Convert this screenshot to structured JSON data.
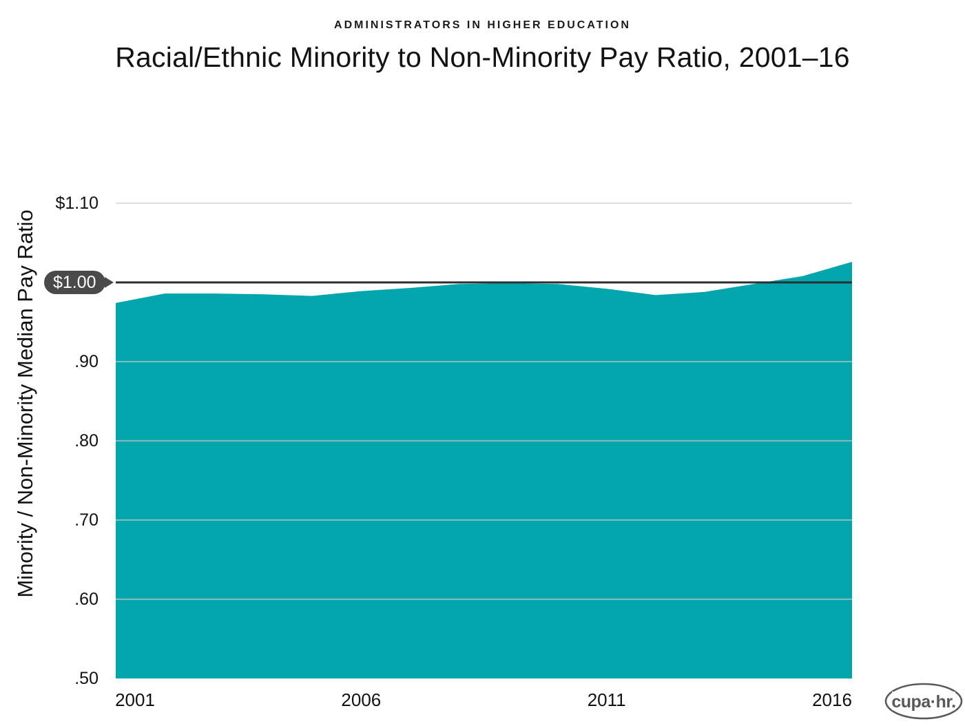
{
  "header": {
    "kicker": "ADMINISTRATORS IN HIGHER EDUCATION",
    "title": "Racial/Ethnic Minority to Non-Minority Pay Ratio, 2001–16"
  },
  "chart_data": {
    "type": "area",
    "title": "Racial/Ethnic Minority to Non-Minority Pay Ratio, 2001–16",
    "subtitle": "ADMINISTRATORS IN HIGHER EDUCATION",
    "xlabel": "",
    "ylabel": "Minority / Non-Minority Median Pay Ratio",
    "x": [
      2001,
      2002,
      2003,
      2004,
      2005,
      2006,
      2007,
      2008,
      2009,
      2010,
      2011,
      2012,
      2013,
      2014,
      2015,
      2016
    ],
    "values": [
      0.974,
      0.986,
      0.986,
      0.985,
      0.983,
      0.989,
      0.993,
      0.998,
      0.999,
      0.998,
      0.992,
      0.984,
      0.988,
      0.998,
      1.008,
      1.026
    ],
    "series_name": "Minority to non-minority median pay ratio",
    "ylim": [
      0.5,
      1.1
    ],
    "xlim": [
      2001,
      2016
    ],
    "grid": true,
    "legend": false,
    "y_ticks": [
      {
        "label": "$1.10",
        "value": 1.1,
        "gridline": true
      },
      {
        "label": ".90",
        "value": 0.9,
        "gridline": true
      },
      {
        "label": ".80",
        "value": 0.8,
        "gridline": true
      },
      {
        "label": ".70",
        "value": 0.7,
        "gridline": true
      },
      {
        "label": ".60",
        "value": 0.6,
        "gridline": true
      },
      {
        "label": ".50",
        "value": 0.5,
        "gridline": false
      }
    ],
    "x_ticks": [
      {
        "label": "2001",
        "value": 2001
      },
      {
        "label": "2006",
        "value": 2006
      },
      {
        "label": "2011",
        "value": 2011
      },
      {
        "label": "2016",
        "value": 2016
      }
    ],
    "reference_line": {
      "label": "$1.00",
      "value": 1.0
    },
    "colors": {
      "area": "#00A6AC",
      "grid": "#C9C9C9",
      "reference_line": "#2E2E2E",
      "badge_bg": "#4A4A4A",
      "badge_text": "#FFFFFF",
      "text": "#121212",
      "logo": "#58595B"
    }
  },
  "branding": {
    "logo_text": "cupa·hr."
  }
}
